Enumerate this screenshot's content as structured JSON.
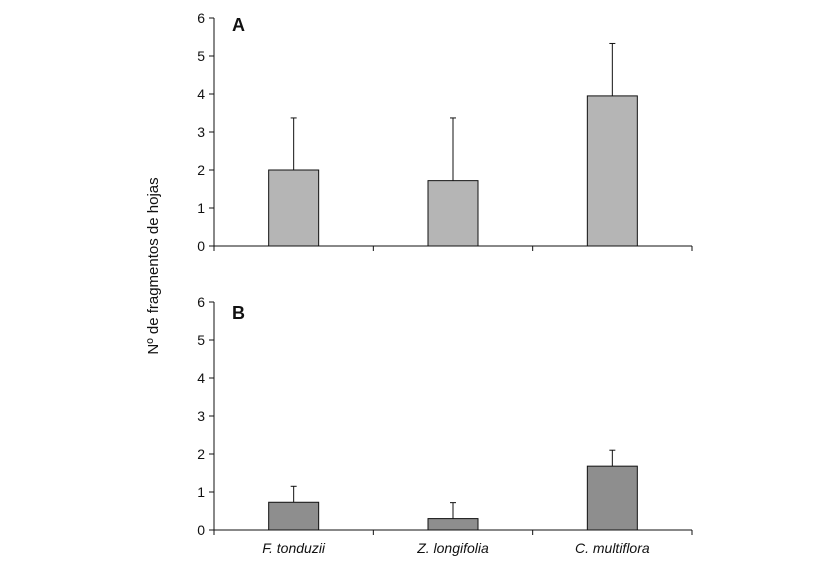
{
  "chart_data": {
    "type": "bar",
    "ylabel": "Nº de fragmentos de hojas",
    "categories": [
      "F. tonduzii",
      "Z. longifolia",
      "C. multiflora"
    ],
    "panels": [
      {
        "label": "A",
        "ylim": [
          0,
          6
        ],
        "yticks": [
          0,
          1,
          2,
          3,
          4,
          5,
          6
        ],
        "bar_color": "#b5b5b5",
        "values": [
          2.0,
          1.72,
          3.95
        ],
        "error_upper": [
          1.37,
          1.65,
          1.38
        ]
      },
      {
        "label": "B",
        "ylim": [
          0,
          6
        ],
        "yticks": [
          0,
          1,
          2,
          3,
          4,
          5,
          6
        ],
        "bar_color": "#8e8e8e",
        "values": [
          0.73,
          0.3,
          1.68
        ],
        "error_upper": [
          0.42,
          0.42,
          0.42
        ]
      }
    ],
    "grid": false,
    "legend": "none"
  }
}
